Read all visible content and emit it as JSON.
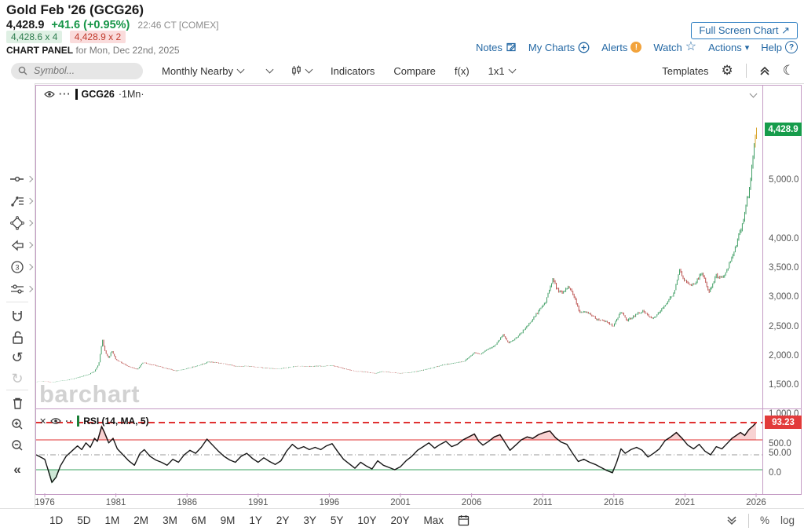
{
  "header": {
    "title": "Gold Feb '26 (GCG26)",
    "last_price": "4,428.9",
    "change": "+41.6 (+0.95%)",
    "quote_time": "22:46 CT [COMEX]",
    "bid": "4,428.6 x 4",
    "ask": "4,428.9 x 2",
    "panel_label": "CHART PANEL",
    "panel_date": "for Mon, Dec 22nd, 2025",
    "fullscreen_button": "Full Screen Chart",
    "links": [
      {
        "label": "Notes",
        "icon": "notes-icon"
      },
      {
        "label": "My Charts",
        "icon": "add-circle-icon"
      },
      {
        "label": "Alerts",
        "icon": "alert-badge-icon"
      },
      {
        "label": "Watch",
        "icon": "star-icon"
      },
      {
        "label": "Actions",
        "icon": "caret-down-icon"
      },
      {
        "label": "Help",
        "icon": "help-circle-icon"
      }
    ],
    "alert_badge_glyph": "!",
    "help_glyph": "?",
    "watch_glyph": "☆",
    "actions_caret": "▾",
    "fullscreen_arrow": "↗"
  },
  "toolbar": {
    "search_placeholder": "Symbol...",
    "frequency": "Monthly Nearby",
    "indicators": "Indicators",
    "compare": "Compare",
    "fx": "f(x)",
    "grid": "1x1",
    "templates": "Templates",
    "gear_glyph": "⚙",
    "moon_glyph": "☾"
  },
  "sidebar_tools": [
    "cursor-tool",
    "trendline-tool",
    "shapes-tool",
    "arrow-tool",
    "count-tool",
    "sliders-tool",
    "magnet",
    "unlock",
    "undo",
    "redo",
    "delete",
    "zoom-in",
    "zoom-out",
    "collapse"
  ],
  "chart": {
    "symbol_legend": "GCG26",
    "freq_legend": "·1Mn·",
    "watermark": "barchart",
    "price_badge": "4,428.9",
    "rsi_legend": "RSI (14, MA, 5)",
    "rsi_badge": "93.23",
    "rsi_mid_label": "50.00"
  },
  "bottom_bar": {
    "ranges": [
      "1D",
      "5D",
      "1M",
      "2M",
      "3M",
      "6M",
      "9M",
      "1Y",
      "2Y",
      "3Y",
      "5Y",
      "10Y",
      "20Y",
      "Max"
    ],
    "percent": "%",
    "log": "log"
  },
  "colors": {
    "accent_blue": "#2468a4",
    "change_green": "#169547",
    "candle_up": "#3f9e64",
    "candle_down": "#bb4f4c",
    "candle_last": "#d9a62e",
    "price_badge_bg": "#169c4b",
    "rsi_badge_bg": "#e23b3b",
    "rsi_red": "#e03131",
    "rsi_green": "#3aa35f",
    "rsi_mid_gray": "#999999",
    "purple_border": "#c49bc4",
    "alert_orange": "#f2a33c"
  },
  "chart_data": [
    {
      "type": "line",
      "name": "GCG26 monthly gold futures price",
      "legend": "GCG26 ·1Mn·",
      "x_unit": "year",
      "xlim": [
        1975.4,
        2026.3
      ],
      "ylim": [
        0,
        5000
      ],
      "grid": false,
      "last_price": 4428.9,
      "y_ticks": [
        {
          "label": "5,000.0",
          "value": 5000
        },
        {
          "label": "4,000.0",
          "value": 4000
        },
        {
          "label": "3,500.0",
          "value": 3500
        },
        {
          "label": "3,000.0",
          "value": 3000
        },
        {
          "label": "2,500.0",
          "value": 2500
        },
        {
          "label": "2,000.0",
          "value": 2000
        },
        {
          "label": "1,500.0",
          "value": 1500
        },
        {
          "label": "1,000.0",
          "value": 1000
        },
        {
          "label": "500.0",
          "value": 500
        },
        {
          "label": "0.0",
          "value": 0
        }
      ],
      "x_ticks": [
        {
          "label": "1976",
          "value": 1976
        },
        {
          "label": "1981",
          "value": 1981
        },
        {
          "label": "1986",
          "value": 1986
        },
        {
          "label": "1991",
          "value": 1991
        },
        {
          "label": "1996",
          "value": 1996
        },
        {
          "label": "2001",
          "value": 2001
        },
        {
          "label": "2006",
          "value": 2006
        },
        {
          "label": "2011",
          "value": 2011
        },
        {
          "label": "2016",
          "value": 2016
        },
        {
          "label": "2021",
          "value": 2021
        },
        {
          "label": "2026",
          "value": 2026
        }
      ],
      "anchors": [
        [
          1975.4,
          118
        ],
        [
          1976.0,
          128
        ],
        [
          1976.5,
          110
        ],
        [
          1977.0,
          132
        ],
        [
          1977.5,
          147
        ],
        [
          1978.0,
          172
        ],
        [
          1978.5,
          205
        ],
        [
          1979.0,
          238
        ],
        [
          1979.5,
          300
        ],
        [
          1979.8,
          430
        ],
        [
          1980.05,
          840
        ],
        [
          1980.25,
          630
        ],
        [
          1980.5,
          520
        ],
        [
          1980.7,
          660
        ],
        [
          1981.0,
          500
        ],
        [
          1981.5,
          430
        ],
        [
          1982.0,
          370
        ],
        [
          1982.5,
          330
        ],
        [
          1982.9,
          450
        ],
        [
          1983.3,
          425
        ],
        [
          1984.0,
          385
        ],
        [
          1984.7,
          340
        ],
        [
          1985.2,
          305
        ],
        [
          1986.0,
          345
        ],
        [
          1986.8,
          400
        ],
        [
          1987.5,
          460
        ],
        [
          1988.0,
          450
        ],
        [
          1988.8,
          420
        ],
        [
          1989.5,
          380
        ],
        [
          1990.0,
          390
        ],
        [
          1990.8,
          375
        ],
        [
          1991.5,
          355
        ],
        [
          1992.3,
          340
        ],
        [
          1993.0,
          360
        ],
        [
          1993.7,
          390
        ],
        [
          1994.5,
          385
        ],
        [
          1995.5,
          387
        ],
        [
          1996.2,
          400
        ],
        [
          1997.0,
          345
        ],
        [
          1997.8,
          300
        ],
        [
          1998.5,
          290
        ],
        [
          1999.2,
          262
        ],
        [
          1999.7,
          295
        ],
        [
          2000.3,
          280
        ],
        [
          2001.0,
          265
        ],
        [
          2001.8,
          282
        ],
        [
          2002.5,
          315
        ],
        [
          2003.2,
          355
        ],
        [
          2004.0,
          410
        ],
        [
          2004.8,
          440
        ],
        [
          2005.5,
          475
        ],
        [
          2006.2,
          620
        ],
        [
          2006.6,
          590
        ],
        [
          2007.0,
          660
        ],
        [
          2007.7,
          750
        ],
        [
          2008.2,
          920
        ],
        [
          2008.6,
          780
        ],
        [
          2008.9,
          820
        ],
        [
          2009.5,
          950
        ],
        [
          2010.0,
          1100
        ],
        [
          2010.7,
          1320
        ],
        [
          2011.2,
          1480
        ],
        [
          2011.7,
          1880
        ],
        [
          2012.0,
          1700
        ],
        [
          2012.4,
          1620
        ],
        [
          2012.8,
          1760
        ],
        [
          2013.2,
          1580
        ],
        [
          2013.6,
          1310
        ],
        [
          2014.2,
          1300
        ],
        [
          2014.8,
          1190
        ],
        [
          2015.5,
          1150
        ],
        [
          2015.95,
          1060
        ],
        [
          2016.5,
          1330
        ],
        [
          2016.9,
          1160
        ],
        [
          2017.5,
          1255
        ],
        [
          2018.0,
          1330
        ],
        [
          2018.7,
          1190
        ],
        [
          2019.2,
          1300
        ],
        [
          2019.8,
          1500
        ],
        [
          2020.2,
          1620
        ],
        [
          2020.6,
          2030
        ],
        [
          2020.9,
          1880
        ],
        [
          2021.3,
          1760
        ],
        [
          2021.7,
          1800
        ],
        [
          2022.2,
          1980
        ],
        [
          2022.7,
          1650
        ],
        [
          2023.2,
          1930
        ],
        [
          2023.7,
          1900
        ],
        [
          2024.0,
          2060
        ],
        [
          2024.4,
          2320
        ],
        [
          2024.8,
          2620
        ],
        [
          2025.1,
          2880
        ],
        [
          2025.35,
          3230
        ],
        [
          2025.5,
          3330
        ],
        [
          2025.65,
          3650
        ],
        [
          2025.8,
          4000
        ],
        [
          2025.92,
          4250
        ],
        [
          2026.03,
          4428.9
        ]
      ]
    },
    {
      "type": "line",
      "name": "RSI (14, MA, 5)",
      "ylim": [
        0,
        100
      ],
      "levels": {
        "current": 93.23,
        "overbought": 70,
        "midline": 50,
        "oversold": 30
      },
      "current_label": "93.23",
      "midline_label": "50.00",
      "points": [
        [
          1975.4,
          50
        ],
        [
          1976.0,
          44
        ],
        [
          1976.2,
          32
        ],
        [
          1976.5,
          13
        ],
        [
          1976.8,
          20
        ],
        [
          1977.1,
          35
        ],
        [
          1977.5,
          48
        ],
        [
          1977.9,
          55
        ],
        [
          1978.3,
          62
        ],
        [
          1978.6,
          57
        ],
        [
          1978.9,
          66
        ],
        [
          1979.2,
          60
        ],
        [
          1979.5,
          72
        ],
        [
          1979.7,
          68
        ],
        [
          1980.0,
          88
        ],
        [
          1980.2,
          80
        ],
        [
          1980.5,
          66
        ],
        [
          1980.8,
          72
        ],
        [
          1981.1,
          58
        ],
        [
          1981.5,
          50
        ],
        [
          1981.9,
          42
        ],
        [
          1982.3,
          36
        ],
        [
          1982.7,
          52
        ],
        [
          1983.0,
          57
        ],
        [
          1983.4,
          48
        ],
        [
          1983.8,
          43
        ],
        [
          1984.2,
          40
        ],
        [
          1984.6,
          36
        ],
        [
          1985.0,
          44
        ],
        [
          1985.4,
          40
        ],
        [
          1985.8,
          50
        ],
        [
          1986.2,
          56
        ],
        [
          1986.6,
          52
        ],
        [
          1987.0,
          60
        ],
        [
          1987.4,
          71
        ],
        [
          1987.8,
          63
        ],
        [
          1988.2,
          55
        ],
        [
          1988.6,
          48
        ],
        [
          1989.0,
          43
        ],
        [
          1989.4,
          40
        ],
        [
          1989.8,
          48
        ],
        [
          1990.2,
          52
        ],
        [
          1990.6,
          45
        ],
        [
          1991.0,
          40
        ],
        [
          1991.4,
          46
        ],
        [
          1991.8,
          41
        ],
        [
          1992.2,
          37
        ],
        [
          1992.6,
          42
        ],
        [
          1993.0,
          55
        ],
        [
          1993.4,
          64
        ],
        [
          1993.8,
          58
        ],
        [
          1994.2,
          61
        ],
        [
          1994.6,
          57
        ],
        [
          1995.0,
          60
        ],
        [
          1995.4,
          57
        ],
        [
          1995.8,
          62
        ],
        [
          1996.2,
          65
        ],
        [
          1996.6,
          54
        ],
        [
          1997.0,
          44
        ],
        [
          1997.4,
          38
        ],
        [
          1997.8,
          32
        ],
        [
          1998.2,
          40
        ],
        [
          1998.6,
          35
        ],
        [
          1999.0,
          31
        ],
        [
          1999.4,
          42
        ],
        [
          1999.8,
          36
        ],
        [
          2000.2,
          33
        ],
        [
          2000.6,
          30
        ],
        [
          2001.0,
          34
        ],
        [
          2001.4,
          42
        ],
        [
          2001.8,
          48
        ],
        [
          2002.2,
          56
        ],
        [
          2002.6,
          61
        ],
        [
          2003.0,
          66
        ],
        [
          2003.4,
          59
        ],
        [
          2003.8,
          64
        ],
        [
          2004.2,
          68
        ],
        [
          2004.6,
          61
        ],
        [
          2005.0,
          64
        ],
        [
          2005.4,
          70
        ],
        [
          2005.8,
          74
        ],
        [
          2006.2,
          78
        ],
        [
          2006.5,
          68
        ],
        [
          2006.8,
          63
        ],
        [
          2007.2,
          68
        ],
        [
          2007.6,
          74
        ],
        [
          2008.0,
          77
        ],
        [
          2008.3,
          68
        ],
        [
          2008.7,
          56
        ],
        [
          2009.1,
          63
        ],
        [
          2009.5,
          70
        ],
        [
          2009.9,
          74
        ],
        [
          2010.3,
          72
        ],
        [
          2010.7,
          77
        ],
        [
          2011.1,
          80
        ],
        [
          2011.5,
          82
        ],
        [
          2011.9,
          73
        ],
        [
          2012.3,
          67
        ],
        [
          2012.7,
          64
        ],
        [
          2013.1,
          52
        ],
        [
          2013.5,
          41
        ],
        [
          2013.9,
          44
        ],
        [
          2014.3,
          40
        ],
        [
          2014.7,
          37
        ],
        [
          2015.1,
          33
        ],
        [
          2015.5,
          29
        ],
        [
          2015.9,
          26
        ],
        [
          2016.2,
          40
        ],
        [
          2016.5,
          58
        ],
        [
          2016.8,
          52
        ],
        [
          2017.2,
          57
        ],
        [
          2017.6,
          60
        ],
        [
          2018.0,
          56
        ],
        [
          2018.4,
          47
        ],
        [
          2018.8,
          52
        ],
        [
          2019.2,
          58
        ],
        [
          2019.6,
          69
        ],
        [
          2020.0,
          74
        ],
        [
          2020.4,
          80
        ],
        [
          2020.8,
          72
        ],
        [
          2021.2,
          63
        ],
        [
          2021.6,
          58
        ],
        [
          2022.0,
          64
        ],
        [
          2022.4,
          55
        ],
        [
          2022.8,
          50
        ],
        [
          2023.2,
          61
        ],
        [
          2023.6,
          58
        ],
        [
          2024.0,
          66
        ],
        [
          2024.3,
          72
        ],
        [
          2024.6,
          76
        ],
        [
          2024.9,
          80
        ],
        [
          2025.2,
          76
        ],
        [
          2025.5,
          84
        ],
        [
          2025.8,
          89
        ],
        [
          2026.0,
          93.23
        ]
      ]
    }
  ]
}
